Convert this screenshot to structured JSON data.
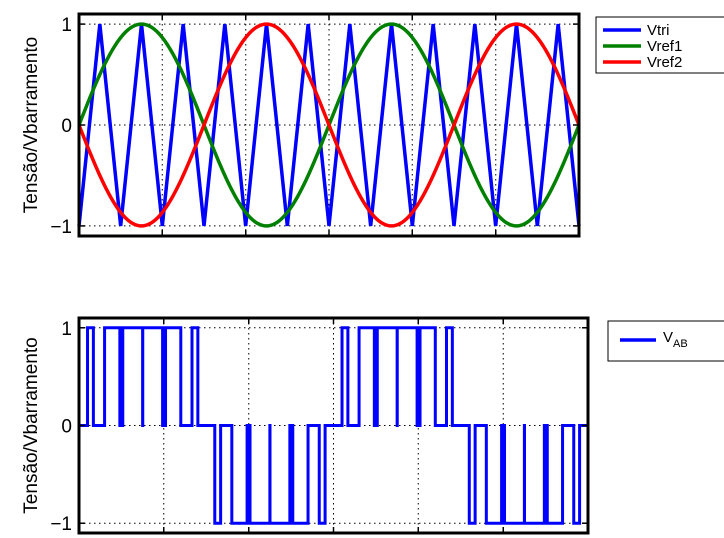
{
  "chart_data": [
    {
      "type": "line",
      "title": "",
      "xlabel": "",
      "ylabel": "Tensão/Vbarramento",
      "xlim": [
        0,
        2
      ],
      "ylim": [
        -1.1,
        1.1
      ],
      "yticks": [
        -1,
        0,
        1
      ],
      "ytick_labels": [
        "−1",
        "0",
        "1"
      ],
      "xticks": [
        0,
        0.333,
        0.667,
        1,
        1.333,
        1.667,
        2
      ],
      "grid": true,
      "legend_position": "outside-top-right",
      "carrier_periods": 12,
      "series": [
        {
          "name": "Vtri",
          "color": "#0000ff",
          "kind": "triangle",
          "amplitude": 1,
          "periods": 12
        },
        {
          "name": "Vref1",
          "color": "#008000",
          "kind": "sine",
          "amplitude": 1,
          "cycles": 2,
          "phase_sign": 1
        },
        {
          "name": "Vref2",
          "color": "#ff0000",
          "kind": "sine",
          "amplitude": 1,
          "cycles": 2,
          "phase_sign": -1
        }
      ]
    },
    {
      "type": "line",
      "title": "",
      "xlabel": "",
      "ylabel": "Tensão/Vbarramento",
      "xlim": [
        0,
        2
      ],
      "ylim": [
        -1.1,
        1.1
      ],
      "yticks": [
        -1,
        0,
        1
      ],
      "ytick_labels": [
        "−1",
        "0",
        "1"
      ],
      "xticks": [
        0,
        0.333,
        0.667,
        1,
        1.333,
        1.667,
        2
      ],
      "grid": true,
      "legend_position": "outside-top-right",
      "series": [
        {
          "name_main": "V",
          "name_sub": "AB",
          "color": "#0000ff",
          "kind": "unipolar-pwm",
          "levels": [
            -1,
            0,
            1
          ]
        }
      ]
    }
  ]
}
